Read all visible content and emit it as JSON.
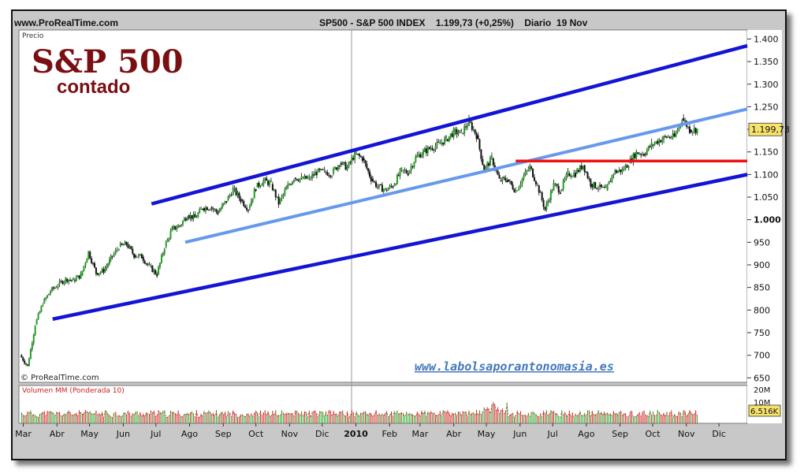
{
  "header": {
    "site": "www.ProRealTime.com",
    "title": "SP500 - S&P 500 INDEX    1.199,73 (+0,25%)    Diario  19 Nov"
  },
  "price_panel": {
    "label": "Precio",
    "overlay_title": "S&P 500",
    "overlay_subtitle": "contado",
    "watermark_bottom": "© ProRealTime.com",
    "watermark_url": "www.labolsaporantonomasia.es",
    "last_value_badge": "1.199,73"
  },
  "volume_panel": {
    "label": "Volumen MM (Ponderada 10)",
    "axis_labels": [
      "20M",
      "10M"
    ],
    "last_value_badge": "6.516K"
  },
  "chart_data": [
    {
      "type": "candlestick",
      "title": "SP500 - S&P 500 INDEX",
      "y_ticks": [
        650,
        700,
        750,
        800,
        850,
        900,
        950,
        1000,
        1050,
        1100,
        1150,
        1200,
        1250,
        1300,
        1350,
        1400
      ],
      "y_tick_labels": [
        "650",
        "700",
        "750",
        "800",
        "850",
        "900",
        "950",
        "1.000",
        "1.050",
        "1.100",
        "1.150",
        "1.200",
        "1.250",
        "1.300",
        "1.350",
        "1.400"
      ],
      "ylim": [
        640,
        1420
      ],
      "x_tick_labels": [
        "Mar",
        "Abr",
        "May",
        "Jun",
        "Jul",
        "Ago",
        "Sep",
        "Oct",
        "Nov",
        "Dic",
        "2010",
        "Feb",
        "Mar",
        "Abr",
        "May",
        "Jun",
        "Jul",
        "Ago",
        "Sep",
        "Oct",
        "Nov",
        "Dic"
      ],
      "x_range": [
        "2009-03-01",
        "2010-12-31"
      ],
      "last_close": 1199.73,
      "close_series": [
        [
          "2009-03-02",
          700
        ],
        [
          "2009-03-09",
          676
        ],
        [
          "2009-03-16",
          768
        ],
        [
          "2009-03-23",
          815
        ],
        [
          "2009-03-30",
          842
        ],
        [
          "2009-04-06",
          856
        ],
        [
          "2009-04-13",
          869
        ],
        [
          "2009-04-20",
          866
        ],
        [
          "2009-04-27",
          877
        ],
        [
          "2009-05-04",
          929
        ],
        [
          "2009-05-11",
          882
        ],
        [
          "2009-05-18",
          887
        ],
        [
          "2009-05-26",
          919
        ],
        [
          "2009-06-01",
          940
        ],
        [
          "2009-06-08",
          946
        ],
        [
          "2009-06-15",
          921
        ],
        [
          "2009-06-22",
          918
        ],
        [
          "2009-06-29",
          896
        ],
        [
          "2009-07-06",
          879
        ],
        [
          "2009-07-13",
          940
        ],
        [
          "2009-07-20",
          979
        ],
        [
          "2009-07-27",
          987
        ],
        [
          "2009-08-03",
          1010
        ],
        [
          "2009-08-10",
          1004
        ],
        [
          "2009-08-17",
          1026
        ],
        [
          "2009-08-24",
          1028
        ],
        [
          "2009-08-31",
          1016
        ],
        [
          "2009-09-08",
          1042
        ],
        [
          "2009-09-14",
          1068
        ],
        [
          "2009-09-21",
          1044
        ],
        [
          "2009-09-28",
          1025
        ],
        [
          "2009-10-05",
          1071
        ],
        [
          "2009-10-12",
          1087
        ],
        [
          "2009-10-19",
          1079
        ],
        [
          "2009-10-26",
          1036
        ],
        [
          "2009-11-02",
          1069
        ],
        [
          "2009-11-09",
          1093
        ],
        [
          "2009-11-16",
          1091
        ],
        [
          "2009-11-23",
          1091
        ],
        [
          "2009-11-30",
          1105
        ],
        [
          "2009-12-07",
          1106
        ],
        [
          "2009-12-14",
          1102
        ],
        [
          "2009-12-21",
          1126
        ],
        [
          "2009-12-28",
          1115
        ],
        [
          "2010-01-04",
          1145
        ],
        [
          "2010-01-11",
          1136
        ],
        [
          "2010-01-19",
          1091
        ],
        [
          "2010-01-25",
          1073
        ],
        [
          "2010-02-01",
          1066
        ],
        [
          "2010-02-08",
          1075
        ],
        [
          "2010-02-16",
          1109
        ],
        [
          "2010-02-22",
          1104
        ],
        [
          "2010-03-01",
          1138
        ],
        [
          "2010-03-08",
          1150
        ],
        [
          "2010-03-15",
          1159
        ],
        [
          "2010-03-22",
          1167
        ],
        [
          "2010-03-29",
          1178
        ],
        [
          "2010-04-05",
          1194
        ],
        [
          "2010-04-12",
          1192
        ],
        [
          "2010-04-19",
          1217
        ],
        [
          "2010-04-26",
          1187
        ],
        [
          "2010-05-03",
          1110
        ],
        [
          "2010-05-10",
          1136
        ],
        [
          "2010-05-17",
          1087
        ],
        [
          "2010-05-24",
          1089
        ],
        [
          "2010-06-01",
          1064
        ],
        [
          "2010-06-07",
          1091
        ],
        [
          "2010-06-14",
          1117
        ],
        [
          "2010-06-21",
          1076
        ],
        [
          "2010-06-28",
          1022
        ],
        [
          "2010-07-06",
          1078
        ],
        [
          "2010-07-12",
          1064
        ],
        [
          "2010-07-19",
          1102
        ],
        [
          "2010-07-26",
          1102
        ],
        [
          "2010-08-02",
          1121
        ],
        [
          "2010-08-09",
          1079
        ],
        [
          "2010-08-16",
          1072
        ],
        [
          "2010-08-23",
          1065
        ],
        [
          "2010-08-30",
          1105
        ],
        [
          "2010-09-07",
          1110
        ],
        [
          "2010-09-13",
          1125
        ],
        [
          "2010-09-20",
          1149
        ],
        [
          "2010-09-27",
          1146
        ],
        [
          "2010-10-04",
          1166
        ],
        [
          "2010-10-11",
          1176
        ],
        [
          "2010-10-18",
          1183
        ],
        [
          "2010-10-25",
          1183
        ],
        [
          "2010-11-01",
          1225
        ],
        [
          "2010-11-08",
          1199
        ],
        [
          "2010-11-15",
          1199.73
        ]
      ],
      "trend_lines": [
        {
          "name": "upper-channel",
          "color": "#1414d4",
          "from": [
            "2009-07-01",
            1035
          ],
          "to": [
            "2010-12-31",
            1385
          ]
        },
        {
          "name": "middle-channel",
          "color": "#6699ee",
          "from": [
            "2009-08-01",
            950
          ],
          "to": [
            "2010-12-31",
            1245
          ]
        },
        {
          "name": "lower-channel",
          "color": "#1414d4",
          "from": [
            "2009-04-01",
            780
          ],
          "to": [
            "2010-12-31",
            1100
          ]
        },
        {
          "name": "resistance",
          "color": "#ee1111",
          "from": [
            "2010-06-01",
            1130
          ],
          "to": [
            "2010-12-31",
            1130
          ]
        }
      ]
    },
    {
      "type": "bar",
      "title": "Volumen MM (Ponderada 10)",
      "y_ticks": [
        "10M",
        "20M"
      ],
      "last_value": "6.516K",
      "note": "daily volume bars with weighted moving average"
    }
  ]
}
